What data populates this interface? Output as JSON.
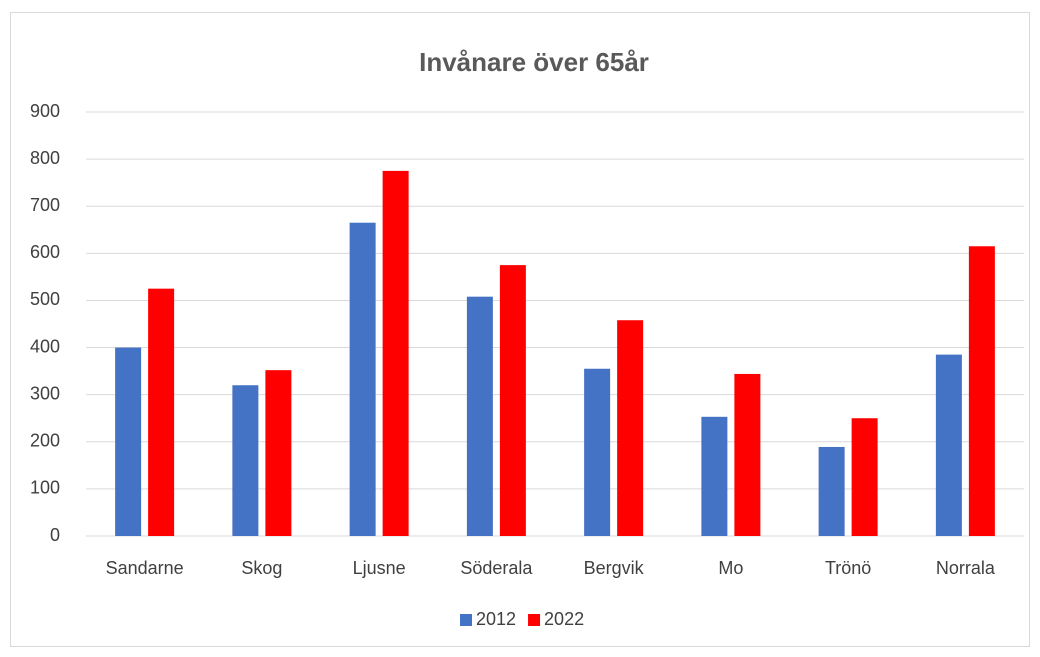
{
  "chart_data": {
    "type": "bar",
    "title": "Invånare över 65år",
    "categories": [
      "Sandarne",
      "Skog",
      "Ljusne",
      "Söderala",
      "Bergvik",
      "Mo",
      "Trönö",
      "Norrala"
    ],
    "series": [
      {
        "name": "2012",
        "color": "#4472c4",
        "values": [
          400,
          320,
          665,
          508,
          355,
          253,
          189,
          385
        ]
      },
      {
        "name": "2022",
        "color": "#ff0000",
        "values": [
          525,
          352,
          775,
          575,
          458,
          344,
          250,
          615
        ]
      }
    ],
    "ylim": [
      0,
      900
    ],
    "yticks": [
      0,
      100,
      200,
      300,
      400,
      500,
      600,
      700,
      800,
      900
    ],
    "grid": true,
    "legend": "bottom"
  }
}
